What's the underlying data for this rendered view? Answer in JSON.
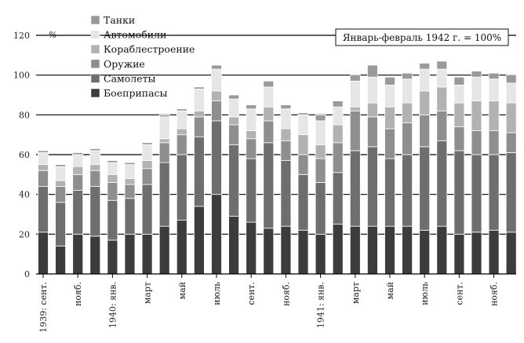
{
  "chart_data": {
    "type": "bar",
    "stacked": true,
    "title": "",
    "ylabel": "%",
    "xlabel": "",
    "note": "Январь-февраль 1942 г. = 100%",
    "ylim": [
      0,
      120
    ],
    "yticks": [
      0,
      20,
      40,
      60,
      80,
      100,
      120
    ],
    "grid": true,
    "legend_position": "top-left",
    "categories": [
      "1939-09",
      "1939-10",
      "1939-11",
      "1939-12",
      "1940-01",
      "1940-02",
      "1940-03",
      "1940-04",
      "1940-05",
      "1940-06",
      "1940-07",
      "1940-08",
      "1940-09",
      "1940-10",
      "1940-11",
      "1940-12",
      "1941-01",
      "1941-02",
      "1941-03",
      "1941-04",
      "1941-05",
      "1941-06",
      "1941-07",
      "1941-08",
      "1941-09",
      "1941-10",
      "1941-11",
      "1941-12"
    ],
    "x_labels": [
      {
        "index": 0,
        "text": "1939: сент."
      },
      {
        "index": 2,
        "text": "нояб."
      },
      {
        "index": 4,
        "text": "1940: янв."
      },
      {
        "index": 6,
        "text": "март"
      },
      {
        "index": 8,
        "text": "май"
      },
      {
        "index": 10,
        "text": "июль"
      },
      {
        "index": 12,
        "text": "сент."
      },
      {
        "index": 14,
        "text": "нояб."
      },
      {
        "index": 16,
        "text": "1941: янв."
      },
      {
        "index": 18,
        "text": "март"
      },
      {
        "index": 20,
        "text": "май"
      },
      {
        "index": 22,
        "text": "июль"
      },
      {
        "index": 24,
        "text": "сент."
      },
      {
        "index": 26,
        "text": "нояб."
      }
    ],
    "series": [
      {
        "name": "Боеприпасы",
        "color": "#3c3c3c",
        "values": [
          21,
          14,
          20,
          19,
          17,
          20,
          20,
          24,
          27,
          34,
          40,
          29,
          26,
          23,
          24,
          22,
          20,
          25,
          24,
          24,
          24,
          24,
          22,
          24,
          20,
          21,
          22,
          21
        ]
      },
      {
        "name": "Самолеты",
        "color": "#6e6e6e",
        "values": [
          23,
          22,
          22,
          25,
          20,
          18,
          25,
          32,
          33,
          35,
          37,
          36,
          32,
          43,
          33,
          28,
          26,
          26,
          38,
          40,
          34,
          36,
          42,
          43,
          42,
          39,
          38,
          40
        ]
      },
      {
        "name": "Оружие",
        "color": "#8e8e8e",
        "values": [
          8,
          8,
          8,
          8,
          9,
          7,
          8,
          10,
          10,
          10,
          10,
          10,
          10,
          11,
          10,
          10,
          12,
          15,
          20,
          15,
          15,
          16,
          16,
          15,
          12,
          12,
          12,
          10
        ]
      },
      {
        "name": "Кораблестроение",
        "color": "#b2b2b2",
        "values": [
          3,
          3,
          4,
          3,
          4,
          3,
          4,
          2,
          3,
          3,
          5,
          4,
          4,
          7,
          6,
          10,
          7,
          9,
          2,
          7,
          11,
          10,
          12,
          12,
          12,
          15,
          15,
          15
        ]
      },
      {
        "name": "Автомобили",
        "color": "#e6e6e6",
        "values": [
          6,
          7,
          6,
          7,
          6,
          7,
          8,
          11,
          9,
          11,
          11,
          9,
          11,
          10,
          10,
          10,
          12,
          9,
          13,
          13,
          11,
          12,
          11,
          9,
          9,
          12,
          11,
          10
        ]
      },
      {
        "name": "Танки",
        "color": "#9a9a9a",
        "values": [
          1,
          1,
          1,
          1,
          1,
          1,
          1,
          1,
          1,
          1,
          2,
          2,
          2,
          3,
          2,
          1,
          3,
          3,
          3,
          6,
          4,
          3,
          3,
          4,
          4,
          3,
          3,
          4
        ]
      }
    ],
    "legend_order": [
      "Танки",
      "Автомобили",
      "Кораблестроение",
      "Оружие",
      "Самолеты",
      "Боеприпасы"
    ]
  }
}
